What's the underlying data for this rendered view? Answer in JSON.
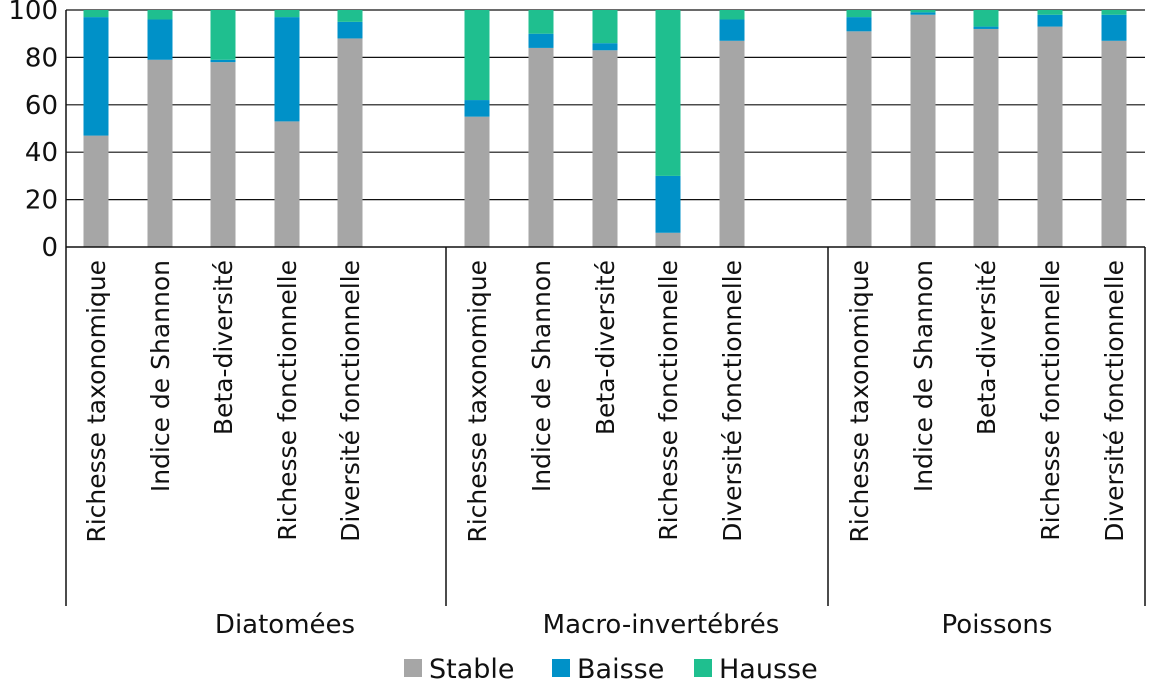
{
  "chart_data": {
    "type": "bar",
    "stacked": true,
    "ylim": [
      0,
      100
    ],
    "yticks": [
      0,
      20,
      40,
      60,
      80,
      100
    ],
    "grid": true,
    "legend_position": "bottom",
    "colors": {
      "Stable": "#a6a6a6",
      "Baisse": "#0091c8",
      "Hausse": "#1fbf8f"
    },
    "groups": [
      {
        "name": "Diatomées",
        "categories": [
          "Richesse taxonomique",
          "Indice de Shannon",
          "Beta-diversité",
          "Richesse fonctionnelle",
          "Diversité fonctionnelle"
        ],
        "series": [
          {
            "name": "Stable",
            "values": [
              47,
              79,
              78,
              53,
              88
            ]
          },
          {
            "name": "Baisse",
            "values": [
              50,
              17,
              1,
              44,
              7
            ]
          },
          {
            "name": "Hausse",
            "values": [
              3,
              4,
              21,
              3,
              5
            ]
          }
        ]
      },
      {
        "name": "Macro-invertébrés",
        "categories": [
          "Richesse taxonomique",
          "Indice de Shannon",
          "Beta-diversité",
          "Richesse fonctionnelle",
          "Diversité fonctionnelle"
        ],
        "series": [
          {
            "name": "Stable",
            "values": [
              55,
              84,
              83,
              6,
              87
            ]
          },
          {
            "name": "Baisse",
            "values": [
              7,
              6,
              3,
              24,
              9
            ]
          },
          {
            "name": "Hausse",
            "values": [
              38,
              10,
              14,
              70,
              4
            ]
          }
        ]
      },
      {
        "name": "Poissons",
        "categories": [
          "Richesse taxonomique",
          "Indice de Shannon",
          "Beta-diversité",
          "Richesse fonctionnelle",
          "Diversité fonctionnelle"
        ],
        "series": [
          {
            "name": "Stable",
            "values": [
              91,
              98,
              92,
              93,
              87
            ]
          },
          {
            "name": "Baisse",
            "values": [
              6,
              1,
              1,
              5,
              11
            ]
          },
          {
            "name": "Hausse",
            "values": [
              3,
              1,
              7,
              2,
              2
            ]
          }
        ]
      }
    ],
    "legend": [
      "Stable",
      "Baisse",
      "Hausse"
    ]
  }
}
